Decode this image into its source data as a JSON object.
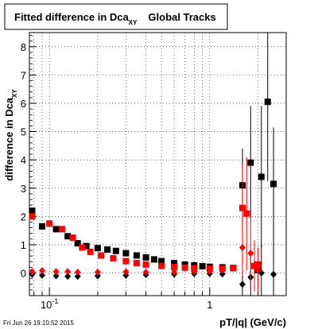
{
  "title_box": {
    "title_main": "Fitted difference in Dca",
    "title_sub": "XY",
    "title_suffix": "Global Tracks"
  },
  "footer": {
    "timestamp": "Fri Jun 26 19:10:52 2015"
  },
  "colors": {
    "series_black": "#000000",
    "series_red": "#ff0000",
    "grid": "#000000",
    "background": "#ffffff"
  },
  "chart_data": {
    "type": "scatter",
    "title": "Fitted difference in Dca_XY Global Tracks",
    "xlabel": "pT/|q| (GeV/c)",
    "ylabel_main": "difference in Dca",
    "ylabel_sub": "XY",
    "x_scale": "log",
    "xlim": [
      0.075,
      3.0
    ],
    "ylim": [
      -0.8,
      8.5
    ],
    "grid": true,
    "legend": "none",
    "x_tick_labels": [
      {
        "value": 0.1,
        "label": "10",
        "sup": "-1"
      },
      {
        "value": 1,
        "label": "1",
        "sup": ""
      }
    ],
    "y_ticks": [
      0,
      1,
      2,
      3,
      4,
      5,
      6,
      7,
      8
    ],
    "series": [
      {
        "marker": "square",
        "color": "#000000",
        "points": [
          [
            0.078,
            2.2,
            0.05
          ],
          [
            0.09,
            1.65,
            0.05
          ],
          [
            0.11,
            1.55,
            0.04
          ],
          [
            0.13,
            1.3,
            0.04
          ],
          [
            0.15,
            1.05,
            0.04
          ],
          [
            0.17,
            0.95,
            0.04
          ],
          [
            0.2,
            0.88,
            0.03
          ],
          [
            0.23,
            0.83,
            0.03
          ],
          [
            0.26,
            0.78,
            0.03
          ],
          [
            0.3,
            0.7,
            0.03
          ],
          [
            0.35,
            0.62,
            0.03
          ],
          [
            0.4,
            0.55,
            0.03
          ],
          [
            0.45,
            0.48,
            0.03
          ],
          [
            0.5,
            0.42,
            0.03
          ],
          [
            0.6,
            0.35,
            0.03
          ],
          [
            0.7,
            0.3,
            0.03
          ],
          [
            0.8,
            0.27,
            0.04
          ],
          [
            0.9,
            0.24,
            0.05
          ],
          [
            1.0,
            0.22,
            0.06
          ],
          [
            1.2,
            0.2,
            0.08
          ],
          [
            1.4,
            0.18,
            0.1
          ],
          [
            1.6,
            3.1,
            1.3
          ],
          [
            1.8,
            3.9,
            2.0
          ],
          [
            2.0,
            0.1,
            0.5
          ],
          [
            2.1,
            3.4,
            2.5
          ],
          [
            2.3,
            6.05,
            2.8
          ],
          [
            2.5,
            3.15,
            2.0
          ]
        ]
      },
      {
        "marker": "diamond",
        "color": "#000000",
        "points": [
          [
            0.078,
            -0.05,
            0.03
          ],
          [
            0.09,
            -0.08,
            0.03
          ],
          [
            0.11,
            -0.1,
            0.03
          ],
          [
            0.13,
            -0.12,
            0.02
          ],
          [
            0.15,
            -0.12,
            0.02
          ],
          [
            0.2,
            -0.1,
            0.02
          ],
          [
            0.3,
            -0.08,
            0.02
          ],
          [
            0.4,
            -0.06,
            0.02
          ],
          [
            0.6,
            -0.04,
            0.02
          ],
          [
            0.8,
            -0.02,
            0.03
          ],
          [
            1.0,
            -0.02,
            0.04
          ],
          [
            1.2,
            -0.03,
            0.06
          ],
          [
            1.6,
            -0.4,
            0.5
          ],
          [
            1.8,
            -0.15,
            0.8
          ],
          [
            2.1,
            0.0,
            1.0
          ],
          [
            2.5,
            -0.05,
            1.2
          ]
        ]
      },
      {
        "marker": "square",
        "color": "#ff0000",
        "points": [
          [
            0.078,
            2.0,
            0.05
          ],
          [
            0.1,
            1.75,
            0.05
          ],
          [
            0.12,
            1.55,
            0.04
          ],
          [
            0.14,
            1.25,
            0.04
          ],
          [
            0.16,
            0.9,
            0.04
          ],
          [
            0.18,
            0.75,
            0.03
          ],
          [
            0.21,
            0.62,
            0.03
          ],
          [
            0.25,
            0.52,
            0.03
          ],
          [
            0.3,
            0.42,
            0.03
          ],
          [
            0.35,
            0.35,
            0.03
          ],
          [
            0.4,
            0.3,
            0.03
          ],
          [
            0.5,
            0.25,
            0.03
          ],
          [
            0.6,
            0.21,
            0.03
          ],
          [
            0.7,
            0.19,
            0.03
          ],
          [
            0.8,
            0.17,
            0.04
          ],
          [
            1.0,
            0.15,
            0.05
          ],
          [
            1.2,
            0.15,
            0.07
          ],
          [
            1.4,
            0.17,
            0.09
          ],
          [
            1.6,
            2.3,
            1.5
          ],
          [
            1.7,
            2.1,
            2.0
          ],
          [
            1.9,
            0.25,
            0.9
          ],
          [
            2.0,
            0.3,
            0.6
          ]
        ]
      },
      {
        "marker": "diamond",
        "color": "#ff0000",
        "points": [
          [
            0.078,
            0.05,
            0.03
          ],
          [
            0.09,
            0.08,
            0.03
          ],
          [
            0.11,
            0.05,
            0.03
          ],
          [
            0.13,
            0.05,
            0.02
          ],
          [
            0.15,
            0.03,
            0.02
          ],
          [
            0.2,
            0.03,
            0.02
          ],
          [
            0.3,
            0.04,
            0.02
          ],
          [
            0.4,
            0.03,
            0.02
          ],
          [
            0.6,
            0.03,
            0.02
          ],
          [
            0.8,
            0.05,
            0.03
          ],
          [
            1.0,
            0.06,
            0.04
          ],
          [
            1.2,
            0.1,
            0.06
          ],
          [
            1.6,
            0.9,
            1.0
          ],
          [
            1.8,
            0.7,
            1.2
          ],
          [
            2.0,
            0.1,
            0.8
          ]
        ]
      }
    ]
  }
}
